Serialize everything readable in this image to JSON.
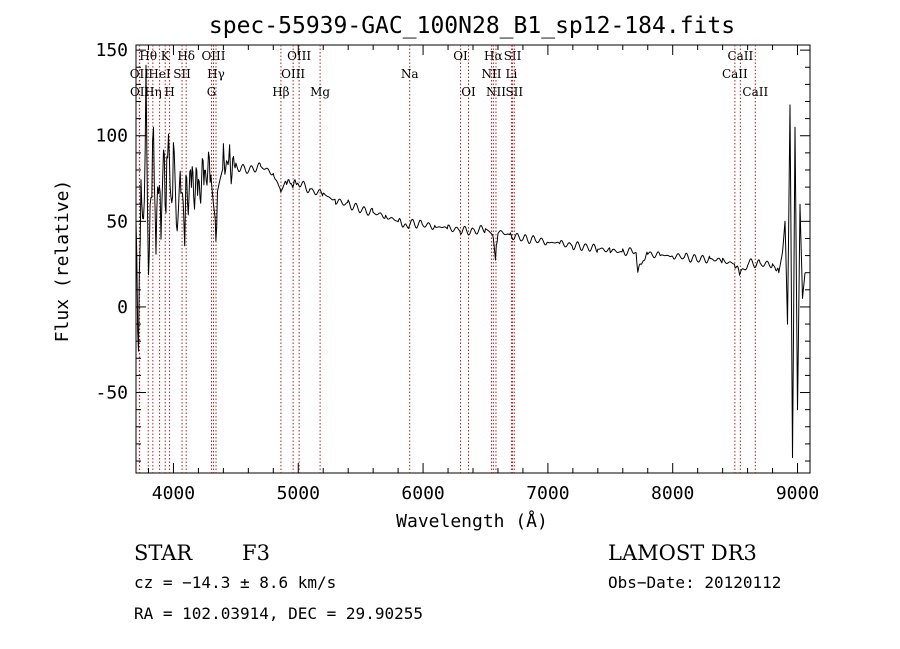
{
  "chart_data": {
    "type": "line",
    "title": "spec-55939-GAC_100N28_B1_sp12-184.fits",
    "xlabel": "Wavelength (Å)",
    "ylabel": "Flux (relative)",
    "xlim": [
      3700,
      9100
    ],
    "ylim": [
      -97,
      153
    ],
    "xticks": [
      4000,
      5000,
      6000,
      7000,
      8000,
      9000
    ],
    "yticks": [
      -50,
      0,
      50,
      100,
      150
    ],
    "series": [
      {
        "name": "flux",
        "x": [
          3700,
          3720,
          3740,
          3760,
          3780,
          3800,
          3820,
          3840,
          3860,
          3880,
          3900,
          3920,
          3940,
          3960,
          3980,
          4000,
          4030,
          4060,
          4090,
          4100,
          4150,
          4200,
          4250,
          4300,
          4340,
          4360,
          4400,
          4450,
          4500,
          4600,
          4700,
          4800,
          4860,
          4900,
          4950,
          5000,
          5100,
          5200,
          5300,
          5400,
          5500,
          5600,
          5700,
          5800,
          5890,
          5900,
          6000,
          6100,
          6200,
          6300,
          6400,
          6500,
          6563,
          6580,
          6600,
          6700,
          6800,
          6900,
          7000,
          7100,
          7200,
          7300,
          7400,
          7500,
          7600,
          7700,
          7720,
          7800,
          7900,
          8000,
          8100,
          8200,
          8300,
          8400,
          8500,
          8542,
          8600,
          8700,
          8800,
          8850,
          8880,
          8900,
          8920,
          8940,
          8960,
          8980,
          9000,
          9020,
          9040,
          9060
        ],
        "values": [
          45,
          -25,
          75,
          40,
          130,
          20,
          65,
          100,
          35,
          80,
          45,
          90,
          60,
          105,
          55,
          85,
          50,
          75,
          35,
          65,
          72,
          68,
          78,
          80,
          45,
          70,
          85,
          83,
          82,
          80,
          82,
          78,
          68,
          74,
          72,
          73,
          68,
          66,
          62,
          60,
          57,
          55,
          53,
          50,
          46,
          49,
          48,
          47,
          46,
          45,
          44,
          46,
          42,
          28,
          44,
          42,
          40,
          39,
          38,
          37,
          36,
          35,
          34,
          33,
          32,
          33,
          22,
          31,
          30,
          30,
          29,
          28,
          28,
          27,
          25,
          18,
          26,
          25,
          25,
          20,
          32,
          50,
          -10,
          118,
          -88,
          105,
          -60,
          60,
          5,
          20
        ]
      }
    ],
    "lines": [
      {
        "label": "Hθ",
        "x": 3798,
        "row": 0
      },
      {
        "label": "OII",
        "x": 3727,
        "row": 1
      },
      {
        "label": "OII",
        "x": 3729,
        "row": 2
      },
      {
        "label": "Hη",
        "x": 3835,
        "row": 2
      },
      {
        "label": "HeI",
        "x": 3889,
        "row": 1
      },
      {
        "label": "K",
        "x": 3934,
        "row": 0
      },
      {
        "label": "H",
        "x": 3969,
        "row": 2
      },
      {
        "label": "SII",
        "x": 4069,
        "row": 1
      },
      {
        "label": "Hδ",
        "x": 4102,
        "row": 0
      },
      {
        "label": "OIII",
        "x": 4321,
        "row": 0
      },
      {
        "label": "Hγ",
        "x": 4341,
        "row": 1
      },
      {
        "label": "G",
        "x": 4305,
        "row": 2
      },
      {
        "label": "Hβ",
        "x": 4861,
        "row": 2
      },
      {
        "label": "OIII",
        "x": 5007,
        "row": 0
      },
      {
        "label": "OIII",
        "x": 4959,
        "row": 1
      },
      {
        "label": "Mg",
        "x": 5175,
        "row": 2
      },
      {
        "label": "Na",
        "x": 5893,
        "row": 1
      },
      {
        "label": "OI",
        "x": 6300,
        "row": 0
      },
      {
        "label": "OI",
        "x": 6364,
        "row": 2
      },
      {
        "label": "Hα",
        "x": 6563,
        "row": 0
      },
      {
        "label": "NII",
        "x": 6548,
        "row": 1
      },
      {
        "label": "NII",
        "x": 6584,
        "row": 2
      },
      {
        "label": "SII",
        "x": 6717,
        "row": 0
      },
      {
        "label": "Li",
        "x": 6708,
        "row": 1
      },
      {
        "label": "SII",
        "x": 6731,
        "row": 2
      },
      {
        "label": "CaII",
        "x": 8542,
        "row": 0
      },
      {
        "label": "CaII",
        "x": 8498,
        "row": 1
      },
      {
        "label": "CaII",
        "x": 8662,
        "row": 2
      }
    ],
    "legend": "none",
    "grid": false
  },
  "info": {
    "class": "STAR",
    "subclass": "F3",
    "survey": "LAMOST DR3",
    "cz": "cz = −14.3 ± 8.6 km/s",
    "obs_date": "Obs−Date: 20120112",
    "radec": "RA = 102.03914, DEC =  29.90255"
  },
  "colors": {
    "spectrum": "#000000",
    "line_markers": "#b22222",
    "axes": "#000000"
  }
}
